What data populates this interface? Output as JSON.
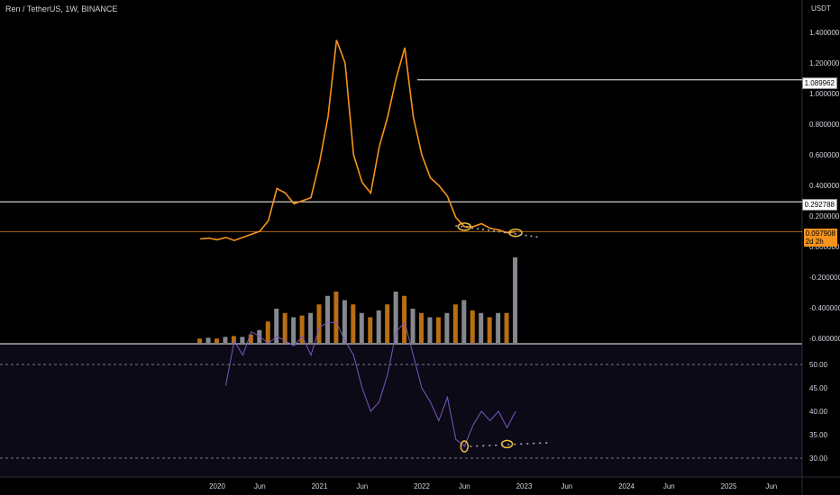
{
  "header": {
    "symbol": "Ren / TetherUS, 1W, BINANCE"
  },
  "price_axis": {
    "unit": "USDT"
  },
  "tags": {
    "level_1": "1.089962",
    "level_2": "0.292788",
    "last_price": "0.097908",
    "countdown": "2d 2h"
  },
  "colors": {
    "up": "#b2b5be",
    "down": "#f7931a",
    "rsi_line": "#7e57c2",
    "rsi_bg": "#0c0a17",
    "hline": "#ffffff",
    "last_line": "#f7931a",
    "marker": "#f0c040"
  },
  "chart_data": [
    {
      "type": "line",
      "title": "Ren / TetherUS, 1W, BINANCE",
      "x_tick_labels": [
        "2020",
        "Jun",
        "2021",
        "Jun",
        "2022",
        "Jun",
        "2023",
        "Jun",
        "2024",
        "Jun",
        "2025",
        "Jun"
      ],
      "y_tick_labels": [
        "1.400000",
        "1.200000",
        "1.000000",
        "0.800000",
        "0.600000",
        "0.400000",
        "0.200000",
        "0.000000",
        "-0.200000",
        "-0.400000",
        "-0.600000"
      ],
      "ylim": [
        -0.6,
        1.45
      ],
      "horizontal_levels": [
        1.089962,
        0.292788,
        0.097908
      ],
      "series": [
        {
          "x": [
            "2019-11",
            "2019-12",
            "2020-01",
            "2020-02",
            "2020-03",
            "2020-04",
            "2020-05",
            "2020-06",
            "2020-07",
            "2020-08",
            "2020-09",
            "2020-10",
            "2020-11",
            "2020-12",
            "2021-01",
            "2021-02",
            "2021-03",
            "2021-04",
            "2021-05",
            "2021-06",
            "2021-07",
            "2021-08",
            "2021-09",
            "2021-10",
            "2021-11",
            "2021-12",
            "2022-01",
            "2022-02",
            "2022-03",
            "2022-04",
            "2022-05",
            "2022-06",
            "2022-07",
            "2022-08",
            "2022-09",
            "2022-10",
            "2022-11",
            "2022-12"
          ],
          "y": [
            0.05,
            0.055,
            0.045,
            0.06,
            0.04,
            0.06,
            0.08,
            0.1,
            0.17,
            0.38,
            0.35,
            0.28,
            0.3,
            0.32,
            0.55,
            0.85,
            1.35,
            1.2,
            0.6,
            0.42,
            0.35,
            0.65,
            0.85,
            1.1,
            1.3,
            0.85,
            0.6,
            0.45,
            0.4,
            0.33,
            0.19,
            0.13,
            0.13,
            0.15,
            0.12,
            0.11,
            0.09,
            0.097908
          ]
        }
      ]
    },
    {
      "type": "bar",
      "title": "Volume",
      "categories": [
        "2019-11",
        "2019-12",
        "2020-01",
        "2020-02",
        "2020-03",
        "2020-04",
        "2020-05",
        "2020-06",
        "2020-07",
        "2020-08",
        "2020-09",
        "2020-10",
        "2020-11",
        "2020-12",
        "2021-01",
        "2021-02",
        "2021-03",
        "2021-04",
        "2021-05",
        "2021-06",
        "2021-07",
        "2021-08",
        "2021-09",
        "2021-10",
        "2021-11",
        "2021-12",
        "2022-01",
        "2022-02",
        "2022-03",
        "2022-04",
        "2022-05",
        "2022-06",
        "2022-07",
        "2022-08",
        "2022-09",
        "2022-10",
        "2022-11",
        "2022-12"
      ],
      "values": [
        0.05,
        0.06,
        0.05,
        0.07,
        0.08,
        0.07,
        0.1,
        0.15,
        0.25,
        0.4,
        0.35,
        0.3,
        0.32,
        0.35,
        0.45,
        0.55,
        0.6,
        0.5,
        0.45,
        0.35,
        0.3,
        0.38,
        0.45,
        0.6,
        0.55,
        0.4,
        0.35,
        0.3,
        0.3,
        0.35,
        0.45,
        0.5,
        0.38,
        0.35,
        0.3,
        0.35,
        0.35,
        1.0
      ]
    },
    {
      "type": "line",
      "title": "RSI",
      "y_tick_labels": [
        "50.00",
        "45.00",
        "40.00",
        "35.00",
        "30.00"
      ],
      "ylim": [
        28,
        58
      ],
      "series": [
        {
          "x": [
            "2020-02",
            "2020-03",
            "2020-04",
            "2020-05",
            "2020-06",
            "2020-07",
            "2020-08",
            "2020-09",
            "2020-10",
            "2020-11",
            "2020-12",
            "2021-01",
            "2021-02",
            "2021-03",
            "2021-04",
            "2021-05",
            "2021-06",
            "2021-07",
            "2021-08",
            "2021-09",
            "2021-10",
            "2021-11",
            "2021-12",
            "2022-01",
            "2022-02",
            "2022-03",
            "2022-04",
            "2022-05",
            "2022-06",
            "2022-07",
            "2022-08",
            "2022-09",
            "2022-10",
            "2022-11",
            "2022-12"
          ],
          "y": [
            45.5,
            55,
            52,
            57,
            56,
            54.5,
            56,
            55,
            54,
            56,
            52,
            58,
            59,
            59,
            55,
            52,
            45,
            40,
            42,
            48,
            57,
            59,
            52,
            45,
            42,
            38,
            43,
            34,
            32.5,
            37,
            40,
            38,
            40,
            36.5,
            40
          ]
        }
      ]
    }
  ]
}
